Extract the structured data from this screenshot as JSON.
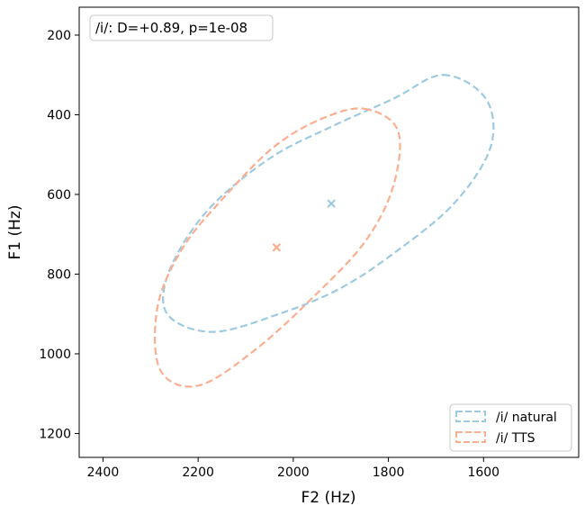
{
  "chart_data": {
    "type": "scatter",
    "title": "",
    "xlabel": "F2 (Hz)",
    "ylabel": "F1 (Hz)",
    "xlim": [
      2450,
      1400
    ],
    "ylim": [
      1260,
      130
    ],
    "x_inverted": true,
    "y_inverted": true,
    "xticks": [
      2400,
      2200,
      2000,
      1800,
      1600
    ],
    "yticks": [
      200,
      400,
      600,
      800,
      1000,
      1200
    ],
    "annotation": "/i/: D=+0.89, p=1e-08",
    "legend_position": "lower-right",
    "grid": false,
    "series": [
      {
        "name": "/i/ natural",
        "color": "#9ecae1",
        "mean": {
          "F2": 1920,
          "F1": 623
        },
        "ellipse": {
          "F2": [
            1685,
            1595,
            1585,
            1660,
            1780,
            1900,
            2030,
            2170,
            2265,
            2260,
            2180,
            2050,
            1920,
            1790
          ],
          "F1": [
            300,
            360,
            480,
            620,
            740,
            835,
            900,
            945,
            900,
            790,
            640,
            510,
            430,
            360
          ]
        }
      },
      {
        "name": "/i/ TTS",
        "color": "#fcae91",
        "mean": {
          "F2": 2035,
          "F1": 733
        },
        "ellipse": {
          "F2": [
            1850,
            1780,
            1790,
            1850,
            1960,
            2080,
            2200,
            2280,
            2285,
            2230,
            2140,
            2040,
            1940
          ],
          "F1": [
            385,
            440,
            580,
            720,
            860,
            990,
            1080,
            1040,
            880,
            730,
            600,
            480,
            410
          ]
        }
      }
    ]
  }
}
